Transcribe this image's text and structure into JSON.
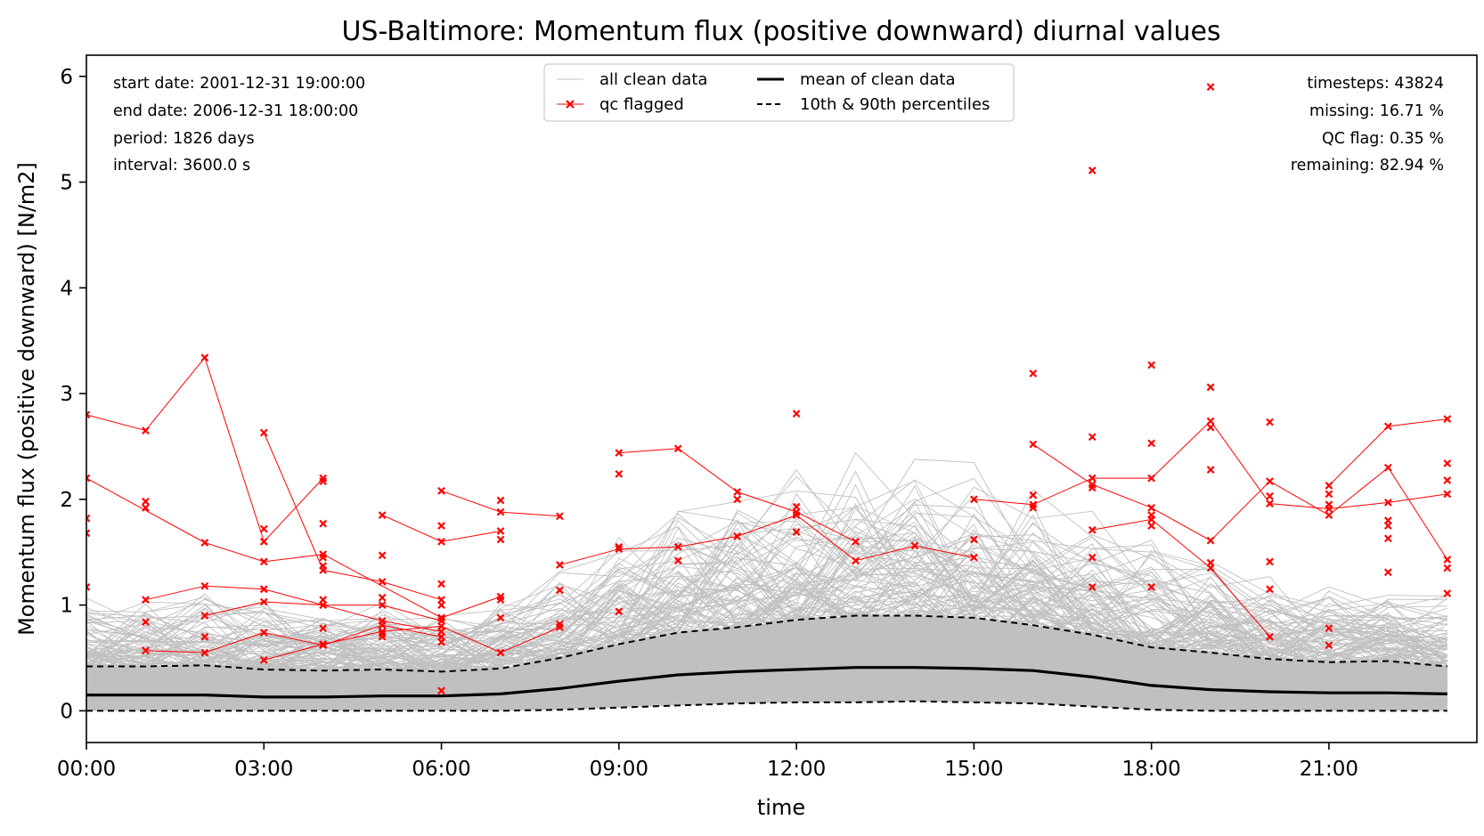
{
  "chart_data": {
    "type": "line",
    "title": "US-Baltimore: Momentum flux (positive downward) diurnal values",
    "xlabel": "time",
    "ylabel": "Momentum flux (positive downward) [N/m2]",
    "x_hours": [
      0,
      1,
      2,
      3,
      4,
      5,
      6,
      7,
      8,
      9,
      10,
      11,
      12,
      13,
      14,
      15,
      16,
      17,
      18,
      19,
      20,
      21,
      22,
      23
    ],
    "xlim": [
      0,
      23.5
    ],
    "ylim": [
      -0.3,
      6.2
    ],
    "x_ticks": [
      {
        "value": 0,
        "label": "00:00"
      },
      {
        "value": 3,
        "label": "03:00"
      },
      {
        "value": 6,
        "label": "06:00"
      },
      {
        "value": 9,
        "label": "09:00"
      },
      {
        "value": 12,
        "label": "12:00"
      },
      {
        "value": 15,
        "label": "15:00"
      },
      {
        "value": 18,
        "label": "18:00"
      },
      {
        "value": 21,
        "label": "21:00"
      }
    ],
    "y_ticks": [
      {
        "value": 0,
        "label": "0"
      },
      {
        "value": 1,
        "label": "1"
      },
      {
        "value": 2,
        "label": "2"
      },
      {
        "value": 3,
        "label": "3"
      },
      {
        "value": 4,
        "label": "4"
      },
      {
        "value": 5,
        "label": "5"
      },
      {
        "value": 6,
        "label": "6"
      }
    ],
    "legend": {
      "placement": "top-center",
      "entries": [
        {
          "label": "all clean data",
          "style": "thin-gray"
        },
        {
          "label": "qc flagged",
          "style": "red-x"
        },
        {
          "label": "mean of clean data",
          "style": "thick-black"
        },
        {
          "label": "10th & 90th percentiles",
          "style": "dashed-black"
        }
      ]
    },
    "info_left": [
      "start date: 2001-12-31 19:00:00",
      "end date: 2006-12-31 18:00:00",
      "period: 1826 days",
      "interval: 3600.0 s"
    ],
    "info_right": [
      "timesteps: 43824",
      "missing: 16.71 %",
      "QC flag: 0.35 %",
      "remaining: 82.94 %"
    ],
    "series": [
      {
        "name": "mean of clean data",
        "values": [
          0.15,
          0.15,
          0.15,
          0.13,
          0.13,
          0.14,
          0.14,
          0.16,
          0.21,
          0.28,
          0.34,
          0.37,
          0.39,
          0.41,
          0.41,
          0.4,
          0.38,
          0.32,
          0.24,
          0.2,
          0.18,
          0.17,
          0.17,
          0.16
        ]
      },
      {
        "name": "10th & 90th percentiles",
        "band": "p90",
        "values": [
          0.42,
          0.42,
          0.43,
          0.39,
          0.38,
          0.39,
          0.37,
          0.4,
          0.5,
          0.63,
          0.74,
          0.79,
          0.86,
          0.9,
          0.9,
          0.88,
          0.81,
          0.72,
          0.6,
          0.55,
          0.49,
          0.46,
          0.47,
          0.42
        ]
      },
      {
        "name": "10th & 90th percentiles",
        "band": "p10",
        "values": [
          0.0,
          0.0,
          0.0,
          0.0,
          0.0,
          0.0,
          0.0,
          0.0,
          0.01,
          0.03,
          0.05,
          0.07,
          0.08,
          0.08,
          0.09,
          0.08,
          0.07,
          0.04,
          0.01,
          0.0,
          0.0,
          0.0,
          0.0,
          0.0
        ]
      }
    ],
    "qc_flagged_lines": [
      [
        [
          0,
          2.8
        ],
        [
          1,
          2.65
        ],
        [
          2,
          3.34
        ],
        [
          3,
          1.6
        ],
        [
          4,
          2.2
        ]
      ],
      [
        [
          0,
          2.2
        ],
        [
          2,
          1.59
        ],
        [
          3,
          1.41
        ],
        [
          4,
          1.48
        ],
        [
          6,
          0.88
        ],
        [
          7,
          1.08
        ]
      ],
      [
        [
          1,
          1.05
        ],
        [
          2,
          1.18
        ],
        [
          3,
          1.15
        ],
        [
          4,
          1.0
        ],
        [
          5,
          1.0
        ],
        [
          6,
          0.85
        ]
      ],
      [
        [
          1,
          0.57
        ],
        [
          2,
          0.55
        ],
        [
          3,
          0.74
        ],
        [
          4,
          0.62
        ],
        [
          5,
          0.81
        ],
        [
          6,
          0.7
        ]
      ],
      [
        [
          2,
          0.9
        ],
        [
          3,
          1.03
        ],
        [
          4,
          1.0
        ],
        [
          5,
          0.85
        ],
        [
          6,
          0.75
        ]
      ],
      [
        [
          3,
          0.48
        ],
        [
          4,
          0.63
        ],
        [
          5,
          0.75
        ],
        [
          6,
          0.8
        ],
        [
          7,
          0.55
        ],
        [
          8,
          0.79
        ]
      ],
      [
        [
          3,
          2.63
        ],
        [
          4,
          1.33
        ],
        [
          5,
          1.22
        ],
        [
          6,
          1.05
        ]
      ],
      [
        [
          5,
          1.85
        ],
        [
          6,
          1.6
        ],
        [
          7,
          1.7
        ]
      ],
      [
        [
          6,
          2.08
        ],
        [
          7,
          1.88
        ],
        [
          8,
          1.84
        ]
      ],
      [
        [
          8,
          1.38
        ],
        [
          9,
          1.53
        ],
        [
          10,
          1.55
        ],
        [
          11,
          1.65
        ],
        [
          12,
          1.85
        ],
        [
          13,
          1.42
        ],
        [
          14,
          1.56
        ],
        [
          15,
          1.45
        ]
      ],
      [
        [
          9,
          2.44
        ],
        [
          10,
          2.48
        ],
        [
          11,
          2.07
        ],
        [
          12,
          1.88
        ],
        [
          13,
          1.6
        ]
      ],
      [
        [
          15,
          2.0
        ],
        [
          16,
          1.95
        ],
        [
          17,
          2.2
        ],
        [
          18,
          2.2
        ],
        [
          19,
          2.74
        ],
        [
          20,
          1.96
        ],
        [
          21,
          1.91
        ],
        [
          22,
          1.97
        ],
        [
          23,
          2.05
        ]
      ],
      [
        [
          16,
          2.52
        ],
        [
          17,
          2.14
        ],
        [
          18,
          1.92
        ],
        [
          19,
          1.61
        ],
        [
          20,
          2.17
        ],
        [
          21,
          1.85
        ],
        [
          22,
          2.3
        ],
        [
          23,
          1.43
        ]
      ],
      [
        [
          17,
          1.71
        ],
        [
          18,
          1.81
        ],
        [
          19,
          1.35
        ],
        [
          20,
          0.7
        ]
      ],
      [
        [
          21,
          2.13
        ],
        [
          22,
          2.69
        ],
        [
          23,
          2.76
        ]
      ]
    ],
    "qc_flagged_points": [
      [
        0,
        1.82
      ],
      [
        0,
        1.68
      ],
      [
        0,
        1.17
      ],
      [
        1,
        1.98
      ],
      [
        1,
        1.92
      ],
      [
        1,
        0.84
      ],
      [
        2,
        0.7
      ],
      [
        3,
        1.72
      ],
      [
        3,
        1.15
      ],
      [
        4,
        2.17
      ],
      [
        4,
        1.77
      ],
      [
        4,
        1.45
      ],
      [
        4,
        1.37
      ],
      [
        4,
        1.05
      ],
      [
        4,
        0.78
      ],
      [
        5,
        1.47
      ],
      [
        5,
        1.07
      ],
      [
        5,
        0.73
      ],
      [
        5,
        0.7
      ],
      [
        6,
        1.75
      ],
      [
        6,
        1.2
      ],
      [
        6,
        1.0
      ],
      [
        6,
        0.65
      ],
      [
        6,
        0.19
      ],
      [
        7,
        1.99
      ],
      [
        7,
        1.62
      ],
      [
        7,
        1.05
      ],
      [
        7,
        0.88
      ],
      [
        8,
        1.14
      ],
      [
        8,
        0.82
      ],
      [
        9,
        2.24
      ],
      [
        9,
        1.55
      ],
      [
        9,
        0.94
      ],
      [
        10,
        1.42
      ],
      [
        11,
        2.0
      ],
      [
        12,
        2.81
      ],
      [
        12,
        1.93
      ],
      [
        12,
        1.69
      ],
      [
        15,
        1.62
      ],
      [
        16,
        3.19
      ],
      [
        16,
        2.04
      ],
      [
        16,
        1.92
      ],
      [
        17,
        5.11
      ],
      [
        17,
        2.59
      ],
      [
        17,
        2.11
      ],
      [
        17,
        1.45
      ],
      [
        17,
        1.17
      ],
      [
        18,
        3.27
      ],
      [
        18,
        2.53
      ],
      [
        18,
        1.85
      ],
      [
        18,
        1.75
      ],
      [
        18,
        1.17
      ],
      [
        19,
        5.9
      ],
      [
        19,
        3.06
      ],
      [
        19,
        2.68
      ],
      [
        19,
        2.28
      ],
      [
        19,
        1.4
      ],
      [
        20,
        2.73
      ],
      [
        20,
        2.03
      ],
      [
        20,
        1.41
      ],
      [
        20,
        1.15
      ],
      [
        21,
        2.05
      ],
      [
        21,
        1.95
      ],
      [
        21,
        0.78
      ],
      [
        21,
        0.62
      ],
      [
        22,
        1.8
      ],
      [
        22,
        1.75
      ],
      [
        22,
        1.63
      ],
      [
        22,
        1.31
      ],
      [
        23,
        2.34
      ],
      [
        23,
        2.18
      ],
      [
        23,
        1.35
      ],
      [
        23,
        1.11
      ]
    ]
  }
}
